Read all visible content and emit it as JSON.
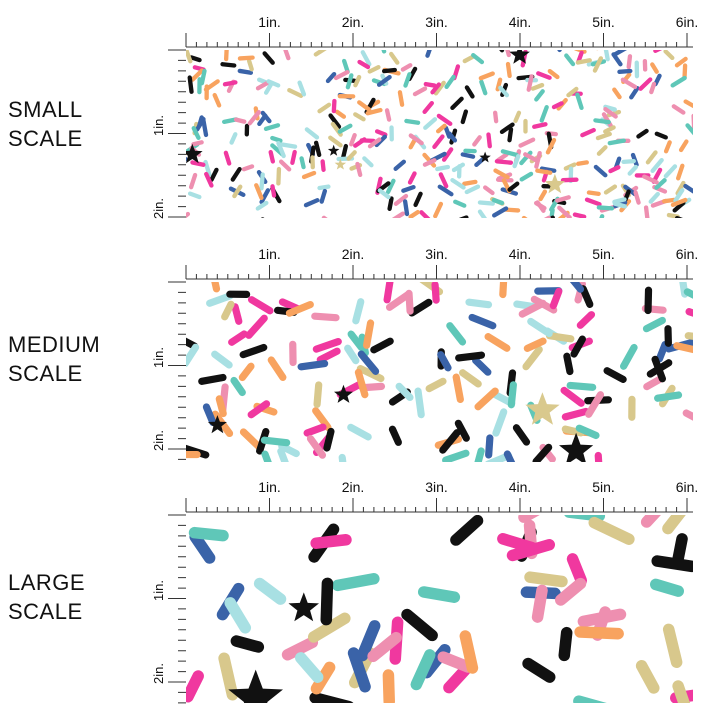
{
  "sections": [
    {
      "label_line1": "SMALL",
      "label_line2": "SCALE",
      "top_ticks": [
        "1in.",
        "2in.",
        "3in.",
        "4in.",
        "5in.",
        "6in."
      ],
      "side_ticks": [
        "1in.",
        "2in."
      ],
      "scale": "small"
    },
    {
      "label_line1": "MEDIUM",
      "label_line2": "SCALE",
      "top_ticks": [
        "1in.",
        "2in.",
        "3in.",
        "4in.",
        "5in.",
        "6in."
      ],
      "side_ticks": [
        "1in.",
        "2in."
      ],
      "scale": "medium"
    },
    {
      "label_line1": "LARGE",
      "label_line2": "SCALE",
      "top_ticks": [
        "1in.",
        "2in.",
        "3in.",
        "4in.",
        "5in.",
        "6in."
      ],
      "side_ticks": [
        "1in.",
        "2in."
      ],
      "scale": "large"
    }
  ],
  "pattern": {
    "name": "sprinkles-and-stars",
    "colors": [
      "#f0389f",
      "#f8a35f",
      "#d8c88c",
      "#3a63a8",
      "#111111",
      "#a8e0e3",
      "#5fc7b8",
      "#ee8fb0"
    ],
    "star_color": "#111111",
    "gold_star_color": "#d9c98d"
  }
}
